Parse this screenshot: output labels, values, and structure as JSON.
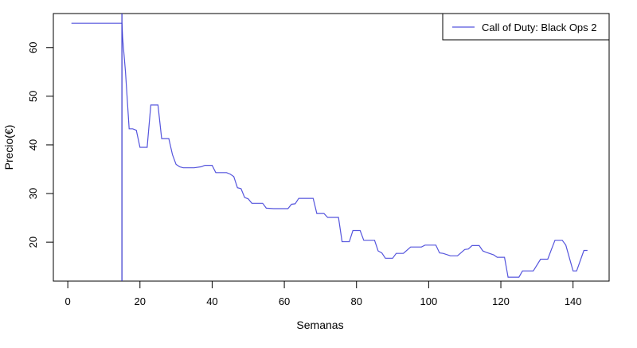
{
  "chart_data": {
    "type": "line",
    "title": "",
    "xlabel": "Semanas",
    "ylabel": "Precio(€)",
    "xlim": [
      -4,
      150
    ],
    "ylim": [
      12,
      67
    ],
    "xticks": [
      0,
      20,
      40,
      60,
      80,
      100,
      120,
      140
    ],
    "yticks": [
      20,
      30,
      40,
      50,
      60
    ],
    "grid": false,
    "legend": {
      "position": "top-right",
      "entries": [
        "Call of Duty: Black Ops 2"
      ]
    },
    "colors": {
      "series": "#5555dd",
      "vline": "#3333cc",
      "axis": "#000000"
    },
    "annotations": [
      {
        "type": "vline",
        "x": 15
      }
    ],
    "series": [
      {
        "name": "Call of Duty: Black Ops 2",
        "x": [
          1,
          15,
          15.2,
          16,
          17,
          18,
          19,
          20,
          21,
          22,
          23,
          24,
          25,
          26,
          27,
          28,
          29,
          30,
          31,
          32,
          35,
          37,
          38,
          40,
          41,
          42,
          44,
          45,
          46,
          47,
          48,
          49,
          50,
          51,
          52,
          54,
          55,
          57,
          60,
          61,
          62,
          63,
          64,
          65,
          67,
          68,
          69,
          70,
          71,
          72,
          74,
          75,
          76,
          78,
          79,
          80,
          81,
          82,
          84,
          85,
          86,
          87,
          88,
          90,
          91,
          92,
          93,
          95,
          96,
          98,
          99,
          101,
          102,
          103,
          104,
          106,
          107,
          108,
          110,
          111,
          112,
          113,
          114,
          115,
          116,
          118,
          119,
          120,
          121,
          122,
          124,
          125,
          126,
          128,
          129,
          131,
          132,
          133,
          134,
          135,
          136,
          137,
          138,
          140,
          141,
          143,
          144
        ],
        "y": [
          65,
          65,
          62,
          55,
          43.3,
          43.3,
          43,
          39.5,
          39.5,
          39.5,
          48.2,
          48.2,
          48.2,
          41.3,
          41.3,
          41.3,
          38,
          36,
          35.5,
          35.3,
          35.3,
          35.5,
          35.8,
          35.8,
          34.3,
          34.3,
          34.3,
          34.0,
          33.5,
          31.2,
          31.0,
          29.2,
          28.9,
          28.0,
          28.0,
          28.0,
          27.0,
          26.9,
          26.9,
          26.9,
          27.8,
          27.9,
          29.0,
          29.0,
          29.0,
          29.0,
          25.9,
          25.9,
          25.9,
          25.1,
          25.1,
          25.1,
          20.1,
          20.1,
          22.4,
          22.4,
          22.4,
          20.4,
          20.4,
          20.4,
          18.2,
          17.8,
          16.7,
          16.7,
          17.7,
          17.7,
          17.7,
          19.0,
          19.0,
          19.0,
          19.4,
          19.4,
          19.4,
          17.8,
          17.7,
          17.2,
          17.2,
          17.2,
          18.5,
          18.6,
          19.3,
          19.3,
          19.3,
          18.2,
          17.9,
          17.4,
          16.9,
          16.9,
          16.9,
          12.8,
          12.8,
          12.8,
          14.1,
          14.1,
          14.1,
          16.5,
          16.5,
          16.5,
          18.5,
          20.4,
          20.4,
          20.4,
          19.4,
          14.1,
          14.1,
          18.3,
          18.3
        ]
      }
    ]
  }
}
